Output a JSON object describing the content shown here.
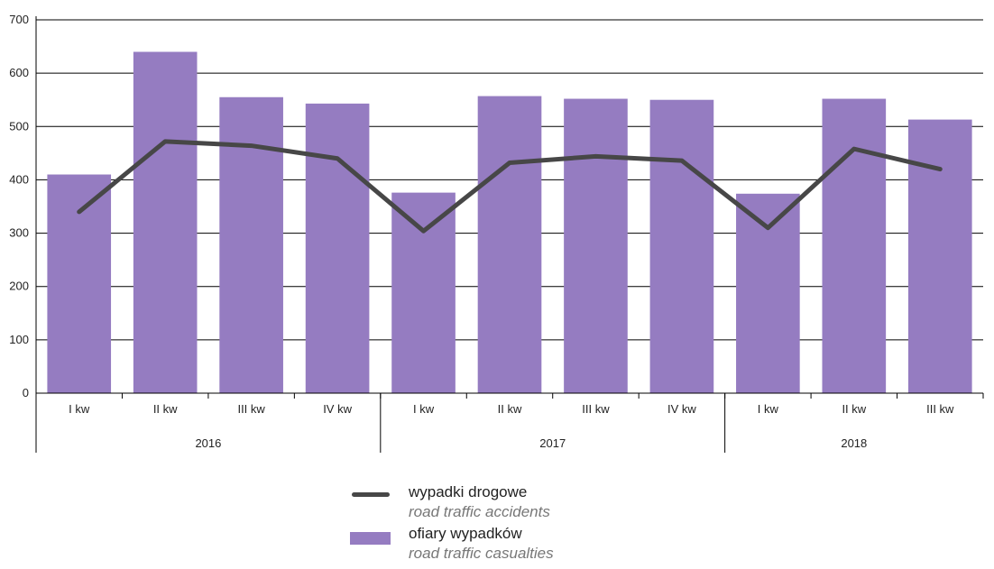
{
  "chart_data": {
    "type": "bar",
    "ylim": [
      0,
      700
    ],
    "y_ticks": [
      "0",
      "100",
      "200",
      "300",
      "400",
      "500",
      "600",
      "700"
    ],
    "grid": true,
    "categories": [
      "I kw",
      "II kw",
      "III kw",
      "IV kw",
      "I kw",
      "II kw",
      "III kw",
      "IV kw",
      "I kw",
      "II kw",
      "III kw"
    ],
    "groups": [
      {
        "label": "2016",
        "count": 4
      },
      {
        "label": "2017",
        "count": 4
      },
      {
        "label": "2018",
        "count": 3
      }
    ],
    "series": [
      {
        "name": "ofiary wypadków",
        "name_en": "road traffic casualties",
        "type": "bar",
        "color": "#957cc1",
        "values": [
          410,
          640,
          555,
          543,
          376,
          557,
          552,
          550,
          374,
          552,
          513
        ]
      },
      {
        "name": "wypadki drogowe",
        "name_en": "road traffic accidents",
        "type": "line",
        "color": "#474747",
        "values": [
          340,
          472,
          464,
          440,
          304,
          432,
          444,
          436,
          310,
          458,
          420
        ]
      }
    ]
  },
  "legend": {
    "accidents_label": "wypadki drogowe",
    "accidents_label_en": "road traffic accidents",
    "casualties_label": "ofiary wypadków",
    "casualties_label_en": "road traffic casualties"
  }
}
